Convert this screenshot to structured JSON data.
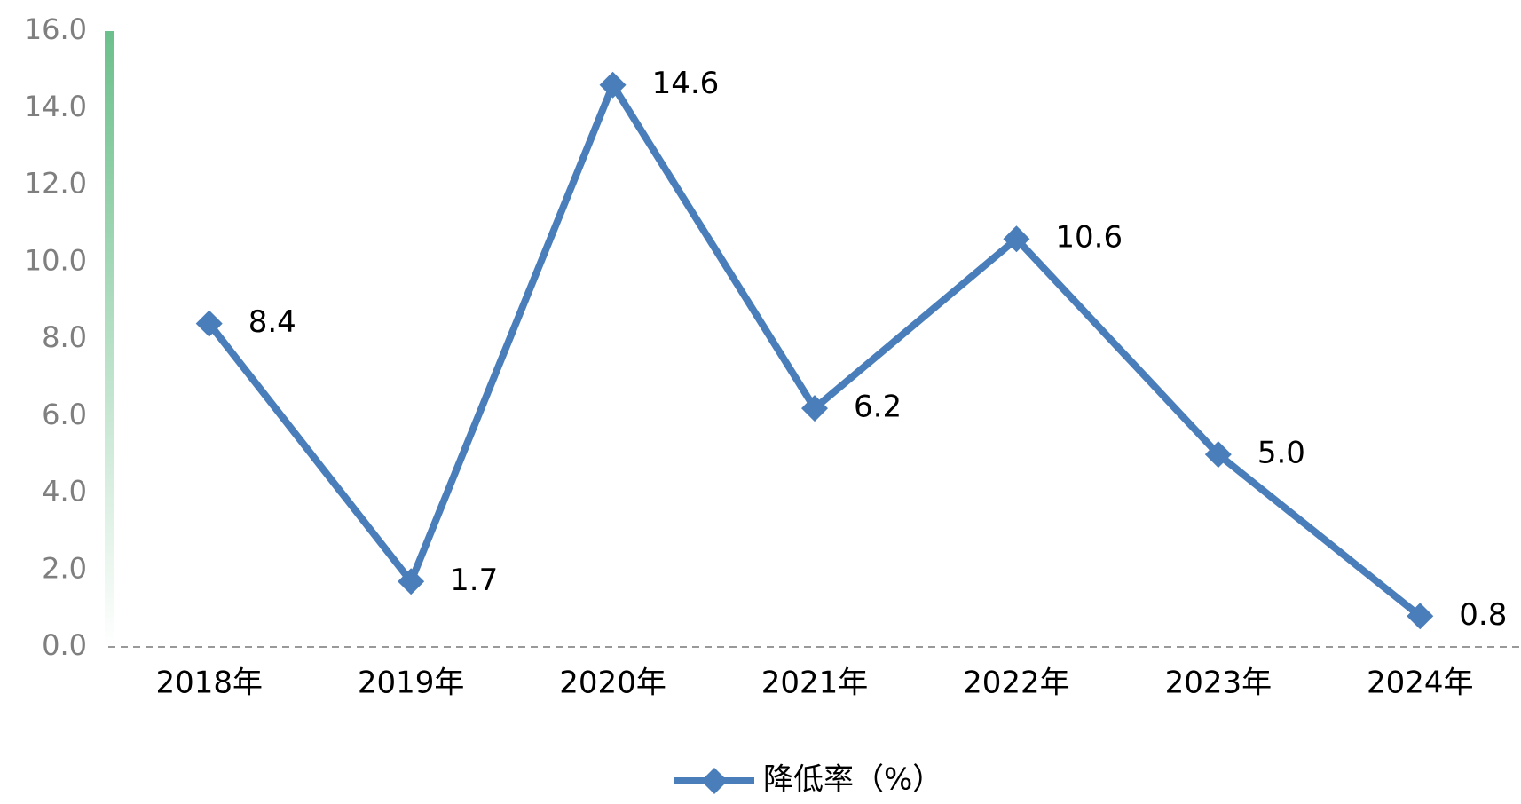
{
  "chart_data": {
    "type": "line",
    "categories": [
      "2018年",
      "2019年",
      "2020年",
      "2021年",
      "2022年",
      "2023年",
      "2024年"
    ],
    "series": [
      {
        "name": "降低率（%）",
        "color": "#4a7ebb",
        "values": [
          8.4,
          1.7,
          14.6,
          6.2,
          10.6,
          5.0,
          0.8
        ],
        "value_labels": [
          "8.4",
          "1.7",
          "14.6",
          "6.2",
          "10.6",
          "5.0",
          "0.8"
        ]
      }
    ],
    "ylim": [
      0,
      16
    ],
    "yticks": [
      {
        "value": 0,
        "label": "0.0"
      },
      {
        "value": 2,
        "label": "2.0"
      },
      {
        "value": 4,
        "label": "4.0"
      },
      {
        "value": 6,
        "label": "6.0"
      },
      {
        "value": 8,
        "label": "8.0"
      },
      {
        "value": 10,
        "label": "10.0"
      },
      {
        "value": 12,
        "label": "12.0"
      },
      {
        "value": 14,
        "label": "14.0"
      },
      {
        "value": 16,
        "label": "16.0"
      }
    ],
    "grid": false,
    "legend": "bottom"
  }
}
